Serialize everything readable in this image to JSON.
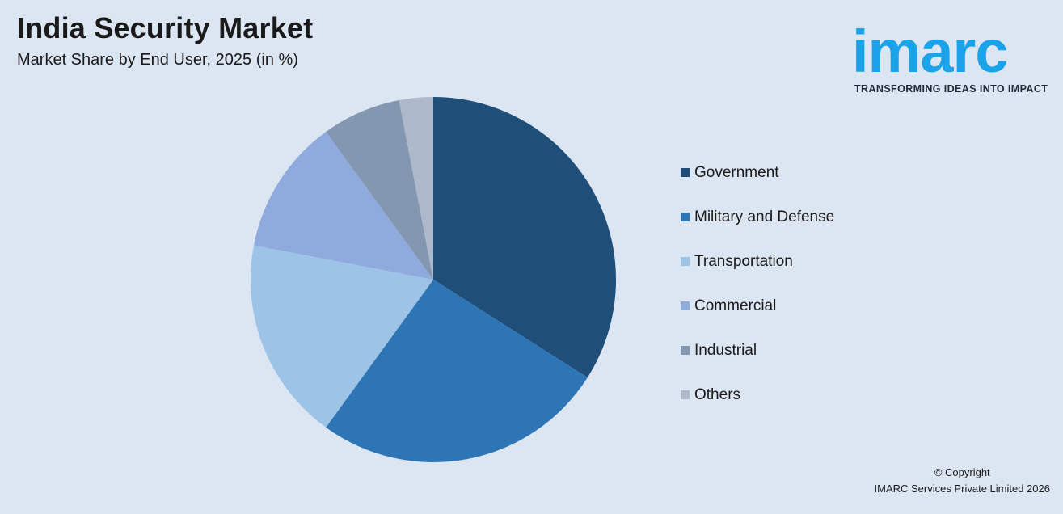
{
  "header": {
    "title": "India Security Market",
    "subtitle": "Market Share by End User, 2025 (in %)"
  },
  "logo": {
    "word": "imarc",
    "tagline": "TRANSFORMING IDEAS INTO IMPACT",
    "color": "#1aa3e8"
  },
  "chart_data": {
    "type": "pie",
    "title": "India Security Market",
    "subtitle": "Market Share by End User, 2025 (in %)",
    "start_angle_deg": 0,
    "direction": "clockwise",
    "legend_position": "right",
    "slices": [
      {
        "label": "Government",
        "value": 34,
        "color": "#1f4e79"
      },
      {
        "label": "Military and Defense",
        "value": 26,
        "color": "#2e75b6"
      },
      {
        "label": "Transportation",
        "value": 18,
        "color": "#9dc3e6"
      },
      {
        "label": "Commercial",
        "value": 12,
        "color": "#8faadc"
      },
      {
        "label": "Industrial",
        "value": 7,
        "color": "#8497b0"
      },
      {
        "label": "Others",
        "value": 3,
        "color": "#adb9ca"
      }
    ]
  },
  "footer": {
    "copyright_line1": "© Copyright",
    "copyright_line2": "IMARC Services Private Limited 2026"
  }
}
